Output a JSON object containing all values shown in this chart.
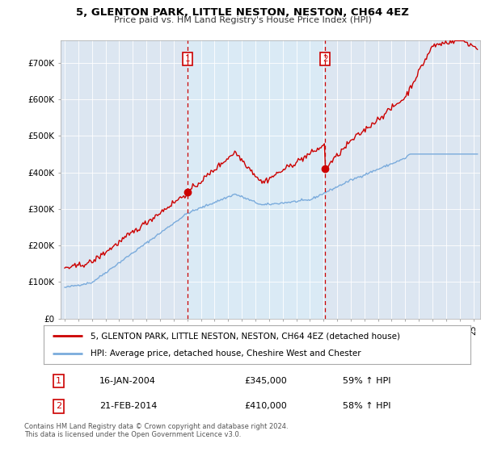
{
  "title": "5, GLENTON PARK, LITTLE NESTON, NESTON, CH64 4EZ",
  "subtitle": "Price paid vs. HM Land Registry's House Price Index (HPI)",
  "ylim": [
    0,
    760000
  ],
  "yticks": [
    0,
    100000,
    200000,
    300000,
    400000,
    500000,
    600000,
    700000
  ],
  "ytick_labels": [
    "£0",
    "£100K",
    "£200K",
    "£300K",
    "£400K",
    "£500K",
    "£600K",
    "£700K"
  ],
  "sale1_x": 2004.04,
  "sale1_price": 345000,
  "sale1_date_str": "16-JAN-2004",
  "sale1_pct": "59% ↑ HPI",
  "sale2_x": 2014.12,
  "sale2_price": 410000,
  "sale2_date_str": "21-FEB-2014",
  "sale2_pct": "58% ↑ HPI",
  "legend_line1": "5, GLENTON PARK, LITTLE NESTON, NESTON, CH64 4EZ (detached house)",
  "legend_line2": "HPI: Average price, detached house, Cheshire West and Chester",
  "footer": "Contains HM Land Registry data © Crown copyright and database right 2024.\nThis data is licensed under the Open Government Licence v3.0.",
  "price_line_color": "#cc0000",
  "hpi_line_color": "#7aabdc",
  "shade_color": "#daeaf5",
  "plot_bg_color": "#dce6f1",
  "grid_color": "#ffffff",
  "label_box_color": "#cc0000"
}
